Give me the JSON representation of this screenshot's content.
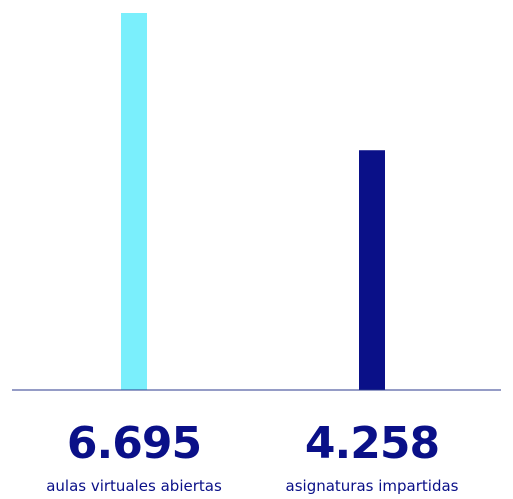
{
  "chart_data": {
    "type": "bar",
    "categories": [
      "aulas virtuales abiertas",
      "asignaturas impartidas"
    ],
    "values": [
      6695,
      4258
    ],
    "value_labels": [
      "6.695",
      "4.258"
    ],
    "colors": [
      "#7aeffc",
      "#0a1088"
    ],
    "axis_color": "#2b3a8c",
    "title": "",
    "xlabel": "",
    "ylabel": "",
    "ylim": [
      0,
      6695
    ],
    "grid": false,
    "legend": "none"
  }
}
